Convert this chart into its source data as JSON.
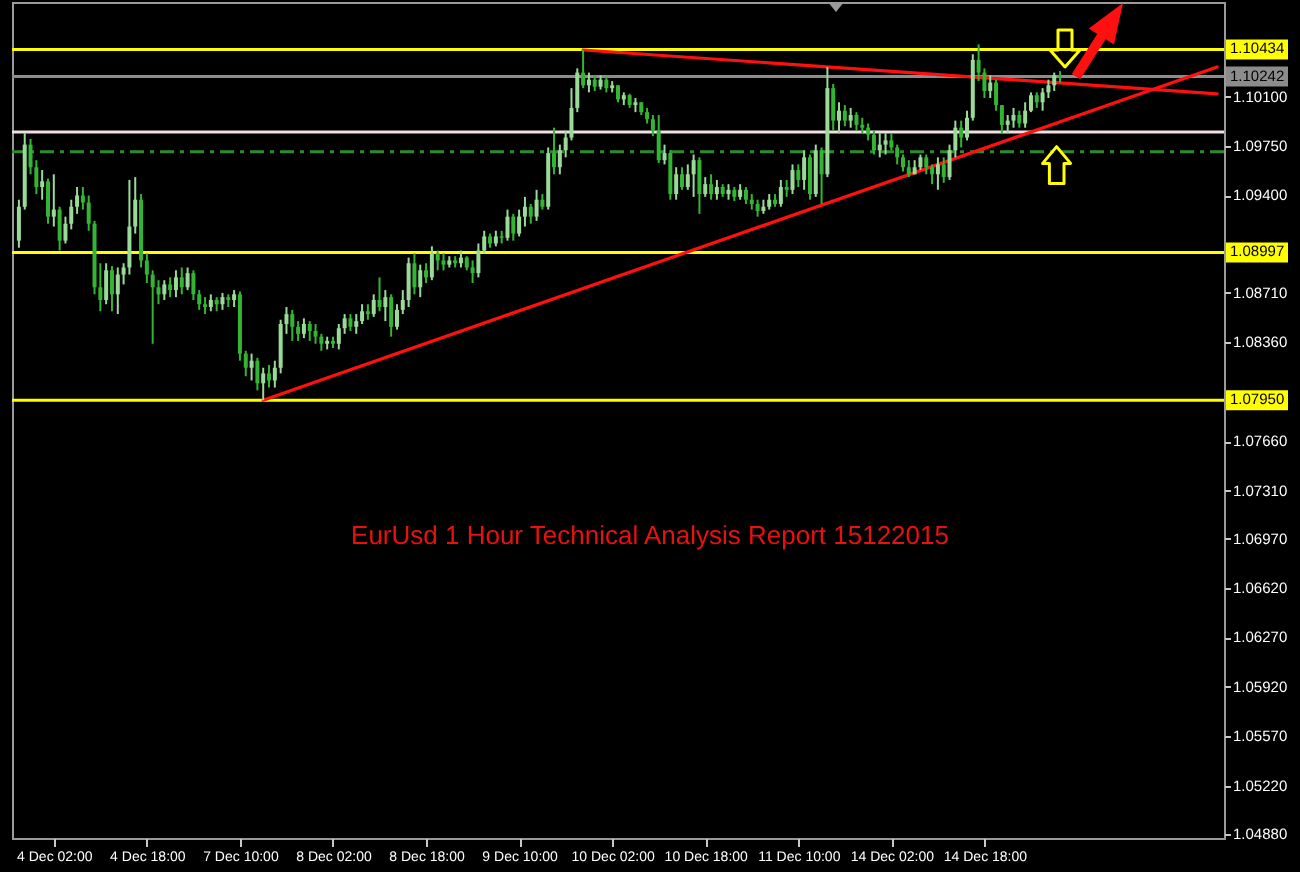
{
  "chart_data": {
    "type": "candlestick",
    "title": "EurUsd 1 Hour Technical Analysis Report 15122015",
    "categories": [
      null,
      null,
      null,
      null,
      null,
      null,
      "4 Dec 02:00",
      null,
      null,
      null,
      null,
      null,
      null,
      null,
      null,
      null,
      null,
      null,
      null,
      null,
      null,
      null,
      "4 Dec 18:00",
      null,
      null,
      null,
      null,
      null,
      null,
      null,
      null,
      null,
      null,
      null,
      null,
      null,
      null,
      null,
      "7 Dec 10:00",
      null,
      null,
      null,
      null,
      null,
      null,
      null,
      null,
      null,
      null,
      null,
      null,
      null,
      null,
      null,
      "8 Dec 02:00",
      null,
      null,
      null,
      null,
      null,
      null,
      null,
      null,
      null,
      null,
      null,
      null,
      null,
      null,
      null,
      "8 Dec 18:00",
      null,
      null,
      null,
      null,
      null,
      null,
      null,
      null,
      null,
      null,
      null,
      null,
      null,
      null,
      null,
      "9 Dec 10:00",
      null,
      null,
      null,
      null,
      null,
      null,
      null,
      null,
      null,
      null,
      null,
      null,
      null,
      null,
      null,
      "10 Dec 02:00",
      null,
      null,
      null,
      null,
      null,
      null,
      null,
      null,
      null,
      null,
      null,
      null,
      null,
      null,
      null,
      "10 Dec 18:00",
      null,
      null,
      null,
      null,
      null,
      null,
      null,
      null,
      null,
      null,
      null,
      null,
      null,
      null,
      null,
      "11 Dec 10:00",
      null,
      null,
      null,
      null,
      null,
      null,
      null,
      null,
      null,
      null,
      null,
      null,
      null,
      null,
      null,
      "14 Dec 02:00",
      null,
      null,
      null,
      null,
      null,
      null,
      null,
      null,
      null,
      null,
      null,
      null,
      null,
      null,
      null,
      "14 Dec 18:00",
      null,
      null,
      null,
      null,
      null,
      null,
      null,
      null,
      null,
      null,
      null,
      null,
      null,
      null,
      null,
      null,
      null,
      null,
      null,
      null,
      null,
      null,
      null,
      null,
      null,
      null,
      null,
      null,
      null,
      null,
      null,
      null,
      null,
      null,
      null,
      null,
      null,
      null,
      null,
      null
    ],
    "ohlc": [
      [
        1.0908,
        1.0937,
        1.0903,
        1.0932
      ],
      [
        1.0932,
        1.0984,
        1.093,
        1.0976
      ],
      [
        1.0976,
        1.098,
        1.0955,
        1.096
      ],
      [
        1.096,
        1.0965,
        1.0941,
        1.0946
      ],
      [
        1.0946,
        1.0958,
        1.0937,
        1.095
      ],
      [
        1.095,
        1.0952,
        1.092,
        1.0925
      ],
      [
        1.0925,
        1.0955,
        1.0918,
        1.093
      ],
      [
        1.093,
        1.0932,
        1.0901,
        1.0908
      ],
      [
        1.0908,
        1.0925,
        1.0906,
        1.092
      ],
      [
        1.092,
        1.0937,
        1.0916,
        1.0932
      ],
      [
        1.0932,
        1.0946,
        1.0927,
        1.094
      ],
      [
        1.094,
        1.0946,
        1.093,
        1.0935
      ],
      [
        1.0935,
        1.094,
        1.0915,
        1.092
      ],
      [
        1.092,
        1.0922,
        1.087,
        1.0875
      ],
      [
        1.0875,
        1.0892,
        1.0858,
        1.0866
      ],
      [
        1.0866,
        1.0892,
        1.0863,
        1.0887
      ],
      [
        1.0887,
        1.089,
        1.0858,
        1.087
      ],
      [
        1.087,
        1.0889,
        1.0856,
        1.0884
      ],
      [
        1.0884,
        1.0892,
        1.0877,
        1.0889
      ],
      [
        1.0889,
        1.0951,
        1.0884,
        1.0918
      ],
      [
        1.0918,
        1.0953,
        1.0913,
        1.0937
      ],
      [
        1.0937,
        1.0941,
        1.0889,
        1.0894
      ],
      [
        1.0894,
        1.0899,
        1.0878,
        1.0884
      ],
      [
        1.0884,
        1.0887,
        1.0835,
        1.0875
      ],
      [
        1.0875,
        1.088,
        1.0863,
        1.087
      ],
      [
        1.087,
        1.088,
        1.0866,
        1.0877
      ],
      [
        1.0877,
        1.0882,
        1.0868,
        1.0873
      ],
      [
        1.0873,
        1.0887,
        1.0868,
        1.0882
      ],
      [
        1.0882,
        1.0889,
        1.087,
        1.0875
      ],
      [
        1.0875,
        1.0889,
        1.0873,
        1.0885
      ],
      [
        1.0885,
        1.0887,
        1.0866,
        1.087
      ],
      [
        1.087,
        1.0873,
        1.0859,
        1.0863
      ],
      [
        1.0863,
        1.0868,
        1.0856,
        1.0861
      ],
      [
        1.0861,
        1.087,
        1.0858,
        1.0866
      ],
      [
        1.0866,
        1.0868,
        1.0858,
        1.0863
      ],
      [
        1.0863,
        1.0871,
        1.0859,
        1.0868
      ],
      [
        1.0868,
        1.087,
        1.0861,
        1.0866
      ],
      [
        1.0866,
        1.0873,
        1.0861,
        1.087
      ],
      [
        1.087,
        1.0872,
        1.0823,
        1.0828
      ],
      [
        1.0828,
        1.083,
        1.0812,
        1.0818
      ],
      [
        1.0818,
        1.0828,
        1.0809,
        1.0823
      ],
      [
        1.0823,
        1.0825,
        1.0802,
        1.0807
      ],
      [
        1.0807,
        1.0818,
        1.0795,
        1.0814
      ],
      [
        1.0814,
        1.082,
        1.0804,
        1.0809
      ],
      [
        1.0809,
        1.0823,
        1.0804,
        1.0818
      ],
      [
        1.0818,
        1.0852,
        1.0814,
        1.0849
      ],
      [
        1.0849,
        1.0861,
        1.0842,
        1.0856
      ],
      [
        1.0856,
        1.0859,
        1.0837,
        1.0847
      ],
      [
        1.0847,
        1.0851,
        1.0837,
        1.0842
      ],
      [
        1.0842,
        1.0853,
        1.0839,
        1.0849
      ],
      [
        1.0849,
        1.0851,
        1.0837,
        1.0844
      ],
      [
        1.0844,
        1.0849,
        1.0835,
        1.084
      ],
      [
        1.084,
        1.0842,
        1.083,
        1.0835
      ],
      [
        1.0835,
        1.084,
        1.0831,
        1.0837
      ],
      [
        1.0837,
        1.084,
        1.0832,
        1.0835
      ],
      [
        1.0835,
        1.0849,
        1.0831,
        1.0846
      ],
      [
        1.0846,
        1.0856,
        1.0842,
        1.0853
      ],
      [
        1.0853,
        1.0856,
        1.0844,
        1.0847
      ],
      [
        1.0847,
        1.0856,
        1.0842,
        1.0851
      ],
      [
        1.0851,
        1.0863,
        1.0849,
        1.0858
      ],
      [
        1.0858,
        1.0863,
        1.0852,
        1.0856
      ],
      [
        1.0856,
        1.087,
        1.0854,
        1.0866
      ],
      [
        1.0866,
        1.0882,
        1.0858,
        1.0861
      ],
      [
        1.0861,
        1.0873,
        1.0851,
        1.0868
      ],
      [
        1.0868,
        1.087,
        1.084,
        1.0847
      ],
      [
        1.0847,
        1.0863,
        1.0845,
        1.0859
      ],
      [
        1.0859,
        1.0873,
        1.0856,
        1.0866
      ],
      [
        1.0866,
        1.0896,
        1.0861,
        1.0892
      ],
      [
        1.0892,
        1.0899,
        1.087,
        1.0875
      ],
      [
        1.0875,
        1.0891,
        1.0868,
        1.0887
      ],
      [
        1.0887,
        1.0892,
        1.0878,
        1.0882
      ],
      [
        1.0882,
        1.0904,
        1.088,
        1.0899
      ],
      [
        1.0899,
        1.0901,
        1.0887,
        1.0894
      ],
      [
        1.0894,
        1.0899,
        1.0887,
        1.0891
      ],
      [
        1.0891,
        1.0897,
        1.0889,
        1.0894
      ],
      [
        1.0894,
        1.0897,
        1.0889,
        1.0892
      ],
      [
        1.0892,
        1.0901,
        1.0889,
        1.0896
      ],
      [
        1.0896,
        1.0897,
        1.0887,
        1.0889
      ],
      [
        1.0889,
        1.0894,
        1.0878,
        1.0885
      ],
      [
        1.0885,
        1.0906,
        1.0882,
        1.0901
      ],
      [
        1.0901,
        1.0915,
        1.0899,
        1.0911
      ],
      [
        1.0911,
        1.0913,
        1.0903,
        1.0906
      ],
      [
        1.0906,
        1.0915,
        1.0904,
        1.0911
      ],
      [
        1.0911,
        1.0915,
        1.0906,
        1.091
      ],
      [
        1.091,
        1.093,
        1.0908,
        1.0925
      ],
      [
        1.0925,
        1.0927,
        1.0908,
        1.0913
      ],
      [
        1.0913,
        1.093,
        1.0911,
        1.0925
      ],
      [
        1.0925,
        1.0939,
        1.0918,
        1.0932
      ],
      [
        1.0932,
        1.0934,
        1.092,
        1.0925
      ],
      [
        1.0925,
        1.0944,
        1.0922,
        1.0937
      ],
      [
        1.0937,
        1.0941,
        1.093,
        1.0932
      ],
      [
        1.0932,
        1.0974,
        1.093,
        1.097
      ],
      [
        1.097,
        1.0988,
        1.0955,
        1.096
      ],
      [
        1.096,
        1.0976,
        1.0955,
        1.0972
      ],
      [
        1.0972,
        1.0986,
        1.0967,
        1.0981
      ],
      [
        1.0981,
        1.1016,
        1.0979,
        1.1002
      ],
      [
        1.1002,
        1.103,
        1.0999,
        1.1027
      ],
      [
        1.1027,
        1.1043,
        1.1016,
        1.1018
      ],
      [
        1.1018,
        1.1027,
        1.1013,
        1.1022
      ],
      [
        1.1022,
        1.1025,
        1.1014,
        1.1017
      ],
      [
        1.1017,
        1.1025,
        1.1015,
        1.1022
      ],
      [
        1.1022,
        1.1024,
        1.1013,
        1.1016
      ],
      [
        1.1016,
        1.1021,
        1.1013,
        1.1018
      ],
      [
        1.1018,
        1.1018,
        1.1006,
        1.1008
      ],
      [
        1.1008,
        1.1013,
        1.1004,
        1.1011
      ],
      [
        1.1011,
        1.1012,
        1.1002,
        1.1004
      ],
      [
        1.1004,
        1.1009,
        1.0999,
        1.1006
      ],
      [
        1.1006,
        1.1006,
        1.0997,
        1.0999
      ],
      [
        1.0999,
        1.1002,
        1.0991,
        1.0994
      ],
      [
        1.0994,
        1.0997,
        1.0982,
        1.0986
      ],
      [
        1.0986,
        1.0997,
        1.0963,
        1.0965
      ],
      [
        1.0965,
        1.0976,
        1.0962,
        1.097
      ],
      [
        1.097,
        1.0972,
        1.0937,
        1.0941
      ],
      [
        1.0941,
        1.096,
        1.0937,
        1.0955
      ],
      [
        1.0955,
        1.096,
        1.0944,
        1.0946
      ],
      [
        1.0946,
        1.0962,
        1.0944,
        1.0955
      ],
      [
        1.0955,
        1.0969,
        1.0939,
        1.0965
      ],
      [
        1.0965,
        1.0967,
        1.0927,
        1.0941
      ],
      [
        1.0941,
        1.0953,
        1.0939,
        1.0948
      ],
      [
        1.0948,
        1.0955,
        1.0937,
        1.0941
      ],
      [
        1.0941,
        1.0951,
        1.0937,
        1.0946
      ],
      [
        1.0946,
        1.0948,
        1.0939,
        1.0941
      ],
      [
        1.0941,
        1.0948,
        1.0937,
        1.0944
      ],
      [
        1.0944,
        1.0946,
        1.0936,
        1.0939
      ],
      [
        1.0939,
        1.0948,
        1.0937,
        1.0944
      ],
      [
        1.0944,
        1.0946,
        1.0934,
        1.0937
      ],
      [
        1.0937,
        1.0941,
        1.093,
        1.0934
      ],
      [
        1.0934,
        1.0937,
        1.0925,
        1.0929
      ],
      [
        1.0929,
        1.0937,
        1.0927,
        1.0932
      ],
      [
        1.0932,
        1.0941,
        1.093,
        1.0937
      ],
      [
        1.0937,
        1.0941,
        1.0932,
        1.0934
      ],
      [
        1.0934,
        1.0951,
        1.0932,
        1.0946
      ],
      [
        1.0946,
        1.0951,
        1.0939,
        1.0944
      ],
      [
        1.0944,
        1.0962,
        1.0941,
        1.0958
      ],
      [
        1.0958,
        1.0962,
        1.0946,
        1.0951
      ],
      [
        1.0951,
        1.0972,
        1.0944,
        1.0967
      ],
      [
        1.0967,
        1.0969,
        1.0937,
        1.0941
      ],
      [
        1.0941,
        1.0976,
        1.0939,
        1.0972
      ],
      [
        1.0972,
        1.0974,
        1.0934,
        1.0955
      ],
      [
        1.0955,
        1.1031,
        1.0953,
        1.1016
      ],
      [
        1.1016,
        1.1019,
        1.0986,
        1.0993
      ],
      [
        1.0993,
        1.1006,
        1.0984,
        1.1
      ],
      [
        1.1,
        1.1004,
        1.0989,
        1.0993
      ],
      [
        1.0993,
        1.1002,
        1.0988,
        1.0997
      ],
      [
        1.0997,
        1.0999,
        1.0986,
        1.099
      ],
      [
        1.099,
        1.0995,
        1.0984,
        1.0988
      ],
      [
        1.0988,
        1.0991,
        1.0979,
        1.0983
      ],
      [
        1.0983,
        1.0986,
        1.0969,
        1.0972
      ],
      [
        1.0972,
        1.0984,
        1.0967,
        1.0976
      ],
      [
        1.0976,
        1.0984,
        1.0969,
        1.0979
      ],
      [
        1.0979,
        1.0984,
        1.0972,
        1.0974
      ],
      [
        1.0974,
        1.0976,
        1.0962,
        1.0967
      ],
      [
        1.0967,
        1.0969,
        1.0957,
        1.096
      ],
      [
        1.096,
        1.0965,
        1.0953,
        1.0955
      ],
      [
        1.0955,
        1.0965,
        1.0955,
        1.096
      ],
      [
        1.096,
        1.0969,
        1.0958,
        1.0967
      ],
      [
        1.0967,
        1.0969,
        1.0955,
        1.096
      ],
      [
        1.096,
        1.0962,
        1.0948,
        1.0955
      ],
      [
        1.0955,
        1.0967,
        1.0944,
        1.0962
      ],
      [
        1.0962,
        1.0967,
        1.0949,
        1.0953
      ],
      [
        1.0953,
        1.0976,
        1.0951,
        1.0972
      ],
      [
        1.0972,
        1.0993,
        1.0967,
        1.0988
      ],
      [
        1.0988,
        1.0993,
        1.0974,
        1.0981
      ],
      [
        1.0981,
        1.1,
        1.0979,
        1.0995
      ],
      [
        1.0995,
        1.104,
        1.0993,
        1.1036
      ],
      [
        1.1036,
        1.1047,
        1.1021,
        1.1027
      ],
      [
        1.1027,
        1.103,
        1.1009,
        1.1014
      ],
      [
        1.1014,
        1.1025,
        1.1009,
        1.102
      ],
      [
        1.102,
        1.1022,
        1.1,
        1.1004
      ],
      [
        1.1004,
        1.1004,
        1.0984,
        1.099
      ],
      [
        1.099,
        1.0997,
        1.0984,
        1.0993
      ],
      [
        1.0993,
        1.1002,
        1.0988,
        1.0997
      ],
      [
        1.0997,
        1.1,
        1.0988,
        1.0991
      ],
      [
        1.0991,
        1.1006,
        1.0988,
        1.1
      ],
      [
        1.1,
        1.1013,
        1.0999,
        1.1011
      ],
      [
        1.1011,
        1.1013,
        1.1002,
        1.1006
      ],
      [
        1.1006,
        1.1016,
        1.1,
        1.1013
      ],
      [
        1.1013,
        1.1022,
        1.1009,
        1.1018
      ],
      [
        1.1018,
        1.1027,
        1.1014,
        1.1025
      ],
      [
        1.1025,
        1.1028,
        1.102,
        1.1024
      ],
      null,
      null,
      null,
      null,
      null,
      null,
      null,
      null,
      null,
      null,
      null,
      null,
      null,
      null,
      null,
      null,
      null,
      null,
      null,
      null,
      null,
      null,
      null,
      null,
      null,
      null,
      null
    ],
    "colors": [
      "#99da99",
      "#99da99",
      "#33b533",
      "#33b533",
      "#99da99",
      "#33b533",
      "#99da99",
      "#33b533",
      "#99da99",
      "#99da99",
      "#99da99",
      "#33b533",
      "#33b533",
      "#33b533",
      "#33b533",
      "#99da99",
      "#33b533",
      "#99da99",
      "#99da99",
      "#99da99",
      "#99da99",
      "#33b533",
      "#33b533",
      "#33b533",
      "#33b533",
      "#99da99",
      "#33b533",
      "#99da99",
      "#33b533",
      "#99da99",
      "#33b533",
      "#33b533",
      "#33b533",
      "#99da99",
      "#33b533",
      "#99da99",
      "#33b533",
      "#99da99",
      "#33b533",
      "#33b533",
      "#99da99",
      "#33b533",
      "#99da99",
      "#33b533",
      "#99da99",
      "#99da99",
      "#99da99",
      "#33b533",
      "#33b533",
      "#99da99",
      "#33b533",
      "#33b533",
      "#33b533",
      "#99da99",
      "#33b533",
      "#99da99",
      "#99da99",
      "#33b533",
      "#99da99",
      "#99da99",
      "#33b533",
      "#99da99",
      "#33b533",
      "#99da99",
      "#33b533",
      "#99da99",
      "#99da99",
      "#99da99",
      "#33b533",
      "#99da99",
      "#33b533",
      "#99da99",
      "#33b533",
      "#33b533",
      "#99da99",
      "#33b533",
      "#99da99",
      "#33b533",
      "#33b533",
      "#99da99",
      "#99da99",
      "#33b533",
      "#99da99",
      "#33b533",
      "#99da99",
      "#33b533",
      "#99da99",
      "#99da99",
      "#33b533",
      "#99da99",
      "#33b533",
      "#99da99",
      "#33b533",
      "#99da99",
      "#99da99",
      "#99da99",
      "#99da99",
      "#33b533",
      "#99da99",
      "#33b533",
      "#99da99",
      "#33b533",
      "#99da99",
      "#33b533",
      "#99da99",
      "#33b533",
      "#99da99",
      "#33b533",
      "#33b533",
      "#33b533",
      "#33b533",
      "#99da99",
      "#33b533",
      "#99da99",
      "#33b533",
      "#99da99",
      "#99da99",
      "#33b533",
      "#99da99",
      "#33b533",
      "#99da99",
      "#33b533",
      "#99da99",
      "#33b533",
      "#99da99",
      "#33b533",
      "#33b533",
      "#33b533",
      "#99da99",
      "#99da99",
      "#33b533",
      "#99da99",
      "#33b533",
      "#99da99",
      "#33b533",
      "#99da99",
      "#33b533",
      "#99da99",
      "#33b533",
      "#99da99",
      "#33b533",
      "#99da99",
      "#33b533",
      "#99da99",
      "#33b533",
      "#33b533",
      "#33b533",
      "#33b533",
      "#99da99",
      "#99da99",
      "#33b533",
      "#33b533",
      "#33b533",
      "#33b533",
      "#99da99",
      "#99da99",
      "#33b533",
      "#33b533",
      "#99da99",
      "#33b533",
      "#99da99",
      "#99da99",
      "#33b533",
      "#99da99",
      "#99da99",
      "#33b533",
      "#33b533",
      "#99da99",
      "#33b533",
      "#33b533",
      "#99da99",
      "#99da99",
      "#33b533",
      "#99da99",
      "#99da99",
      "#33b533",
      "#99da99",
      "#99da99",
      "#99da99",
      "#33b533",
      null,
      null,
      null,
      null,
      null,
      null,
      null,
      null,
      null,
      null,
      null,
      null,
      null,
      null,
      null,
      null,
      null,
      null,
      null,
      null,
      null,
      null,
      null,
      null,
      null,
      null,
      null
    ],
    "series": [
      {
        "type": "line",
        "color": "#ff1010",
        "values": [
          null,
          null,
          null,
          null,
          null,
          null,
          null,
          null,
          null,
          null,
          null,
          null,
          null,
          null,
          null,
          null,
          null,
          null,
          null,
          null,
          null,
          null,
          null,
          null,
          null,
          null,
          null,
          null,
          null,
          null,
          null,
          null,
          null,
          null,
          null,
          null,
          null,
          null,
          null,
          null,
          null,
          null,
          1.0795,
          null,
          null,
          null,
          null,
          null,
          null,
          null,
          null,
          null,
          null,
          null,
          null,
          null,
          null,
          null,
          null,
          null,
          null,
          null,
          null,
          null,
          null,
          null,
          null,
          null,
          null,
          null,
          null,
          null,
          null,
          null,
          null,
          null,
          null,
          null,
          null,
          null,
          null,
          null,
          null,
          null,
          null,
          null,
          null,
          null,
          null,
          null,
          null,
          null,
          null,
          null,
          null,
          null,
          null,
          null,
          null,
          null,
          null,
          null,
          null,
          null,
          null,
          null,
          null,
          null,
          null,
          null,
          null,
          null,
          null,
          null,
          null,
          null,
          null,
          null,
          null,
          null,
          null,
          null,
          null,
          null,
          null,
          null,
          null,
          null,
          null,
          null,
          null,
          null,
          null,
          null,
          null,
          null,
          null,
          null,
          null,
          null,
          null,
          null,
          null,
          null,
          null,
          null,
          null,
          null,
          null,
          null,
          null,
          null,
          null,
          null,
          null,
          null,
          null,
          null,
          null,
          null,
          null,
          null,
          null,
          null,
          null,
          null,
          null,
          null,
          null,
          null,
          null,
          null,
          null,
          null,
          null,
          null,
          null,
          null,
          null,
          null,
          null,
          null,
          null,
          null,
          null,
          null,
          null,
          null,
          null,
          null,
          null,
          null,
          null,
          null,
          null,
          null,
          null,
          null,
          null,
          null,
          null,
          null,
          null,
          null,
          null,
          null,
          1.1031
        ]
      },
      {
        "type": "line",
        "color": "#ff1010",
        "values": [
          null,
          null,
          null,
          null,
          null,
          null,
          null,
          null,
          null,
          null,
          null,
          null,
          null,
          null,
          null,
          null,
          null,
          null,
          null,
          null,
          null,
          null,
          null,
          null,
          null,
          null,
          null,
          null,
          null,
          null,
          null,
          null,
          null,
          null,
          null,
          null,
          null,
          null,
          null,
          null,
          null,
          null,
          null,
          null,
          null,
          null,
          null,
          null,
          null,
          null,
          null,
          null,
          null,
          null,
          null,
          null,
          null,
          null,
          null,
          null,
          null,
          null,
          null,
          null,
          null,
          null,
          null,
          null,
          null,
          null,
          null,
          null,
          null,
          null,
          null,
          null,
          null,
          null,
          null,
          null,
          null,
          null,
          null,
          null,
          null,
          null,
          null,
          null,
          null,
          null,
          null,
          null,
          null,
          null,
          null,
          null,
          null,
          1.1043,
          null,
          null,
          null,
          null,
          null,
          null,
          null,
          null,
          null,
          null,
          null,
          null,
          null,
          null,
          null,
          null,
          null,
          null,
          null,
          null,
          null,
          null,
          null,
          null,
          null,
          null,
          null,
          null,
          null,
          null,
          null,
          null,
          null,
          null,
          null,
          null,
          null,
          null,
          null,
          null,
          null,
          null,
          null,
          null,
          null,
          null,
          null,
          null,
          null,
          null,
          null,
          null,
          null,
          null,
          null,
          null,
          null,
          null,
          null,
          null,
          null,
          null,
          null,
          null,
          null,
          null,
          null,
          null,
          null,
          null,
          null,
          null,
          null,
          null,
          null,
          null,
          null,
          null,
          null,
          null,
          null,
          null,
          null,
          null,
          null,
          null,
          null,
          null,
          null,
          null,
          null,
          null,
          null,
          null,
          null,
          null,
          null,
          null,
          null,
          null,
          null,
          null,
          null,
          null,
          null,
          null,
          null,
          null,
          1.1012
        ]
      }
    ],
    "ylim": [
      1.0485,
      1.1077
    ],
    "yticks": [
      {
        "value": 1.101,
        "label": "1.10100"
      },
      {
        "value": 1.0975,
        "label": "1.09750"
      },
      {
        "value": 1.094,
        "label": "1.09400"
      },
      {
        "value": 1.0871,
        "label": "1.08710"
      },
      {
        "value": 1.0836,
        "label": "1.08360"
      },
      {
        "value": 1.0766,
        "label": "1.07660"
      },
      {
        "value": 1.0731,
        "label": "1.07310"
      },
      {
        "value": 1.0697,
        "label": "1.06970"
      },
      {
        "value": 1.0662,
        "label": "1.06620"
      },
      {
        "value": 1.0627,
        "label": "1.06270"
      },
      {
        "value": 1.0592,
        "label": "1.05920"
      },
      {
        "value": 1.0557,
        "label": "1.05570"
      },
      {
        "value": 1.0522,
        "label": "1.05220"
      },
      {
        "value": 1.0488,
        "label": "1.04880"
      }
    ],
    "ref_lines": [
      {
        "axis": "y",
        "value": 1.10434,
        "label": "1.10434",
        "color": "#ffff00"
      },
      {
        "axis": "y",
        "value": 1.10242,
        "label": "1.10242",
        "color": "#8c8c8c"
      },
      {
        "axis": "y",
        "value": 1.0985,
        "color": "#f0e0e0"
      },
      {
        "axis": "y",
        "value": 1.0971,
        "color": "#2e8b2e",
        "line_style": "dashed"
      },
      {
        "axis": "y",
        "value": 1.08997,
        "label": "1.08997",
        "color": "#ffff00"
      },
      {
        "axis": "y",
        "value": 1.0795,
        "label": "1.07950",
        "color": "#ffff00"
      }
    ]
  }
}
